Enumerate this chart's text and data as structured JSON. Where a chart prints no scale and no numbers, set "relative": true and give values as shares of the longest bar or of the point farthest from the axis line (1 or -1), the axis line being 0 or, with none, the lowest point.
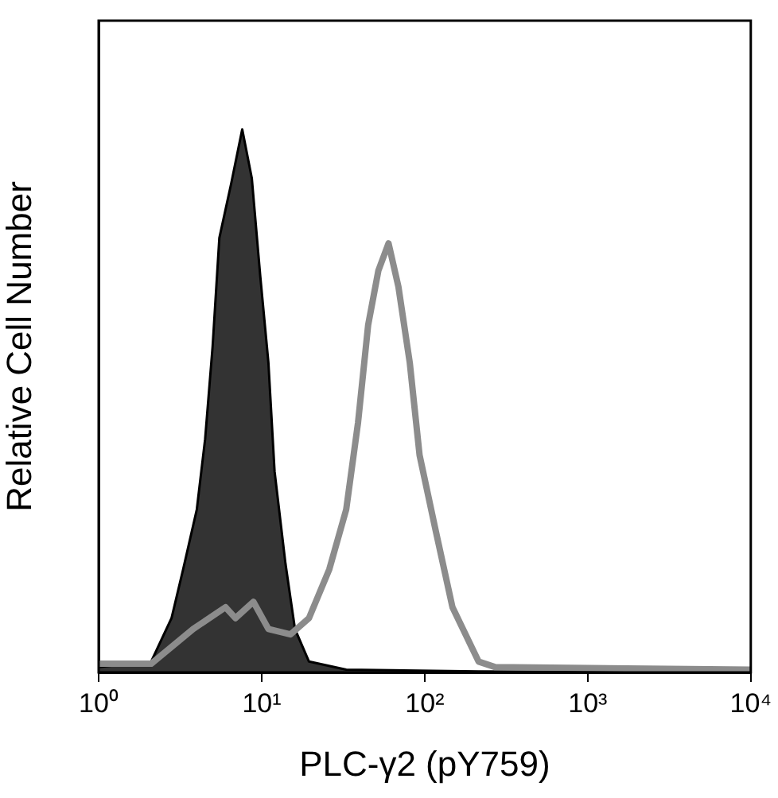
{
  "chart_data": {
    "type": "area",
    "relative": true,
    "log": "x",
    "xlabel": "PLC-γ2 (pY759)",
    "ylabel": "Relative Cell Number",
    "xlim": [
      1,
      10000
    ],
    "xticks": [
      {
        "value": 1,
        "label": "10⁰"
      },
      {
        "value": 10,
        "label": "10¹"
      },
      {
        "value": 100,
        "label": "10²"
      },
      {
        "value": 1000,
        "label": "10³"
      },
      {
        "value": 10000,
        "label": "10⁴"
      }
    ],
    "grid": false,
    "legend": false,
    "series": [
      {
        "color": "#333333",
        "x": [
          1,
          2.1,
          2.8,
          3.3,
          4.0,
          4.5,
          5.0,
          5.5,
          6.5,
          7.6,
          8.7,
          9.8,
          11,
          12,
          14,
          16,
          19.5,
          33,
          214,
          10000
        ],
        "values": [
          0.01,
          0.02,
          0.1,
          0.19,
          0.3,
          0.43,
          0.6,
          0.8,
          0.9,
          1,
          0.91,
          0.73,
          0.57,
          0.37,
          0.2,
          0.08,
          0.02,
          0.005,
          0.002,
          0
        ]
      },
      {
        "type": "line",
        "color": "#8c8c8c",
        "x": [
          1,
          2.1,
          3.8,
          6.0,
          6.9,
          8.9,
          11,
          15,
          19.5,
          26,
          33,
          39,
          45,
          52,
          60,
          69,
          81,
          93,
          117,
          148,
          214,
          269,
          10000
        ],
        "values": [
          0.016,
          0.016,
          0.08,
          0.12,
          0.1,
          0.13,
          0.08,
          0.07,
          0.1,
          0.19,
          0.3,
          0.46,
          0.64,
          0.74,
          0.79,
          0.71,
          0.57,
          0.4,
          0.26,
          0.12,
          0.02,
          0.01,
          0.005
        ]
      }
    ]
  }
}
